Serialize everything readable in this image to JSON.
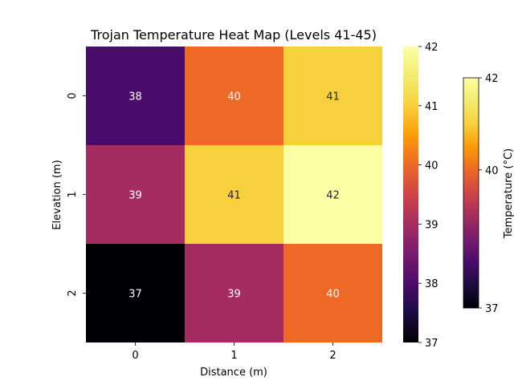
{
  "chart_data": {
    "type": "heatmap",
    "title": "Trojan Temperature Heat Map (Levels 41-45)",
    "xlabel": "Distance (m)",
    "ylabel": "Elevation (m)",
    "x_categories": [
      "0",
      "1",
      "2"
    ],
    "y_categories": [
      "0",
      "1",
      "2"
    ],
    "values": [
      [
        38,
        40,
        41
      ],
      [
        39,
        41,
        42
      ],
      [
        37,
        39,
        40
      ]
    ],
    "colormap": "inferno",
    "vmin": 37,
    "vmax": 42,
    "annotated": true,
    "colorbar_main": {
      "ticks": [
        "37",
        "38",
        "39",
        "40",
        "41",
        "42"
      ]
    },
    "colorbar_secondary": {
      "label": "Temperature (°C)",
      "ticks": [
        "37",
        "40",
        "42"
      ]
    }
  }
}
